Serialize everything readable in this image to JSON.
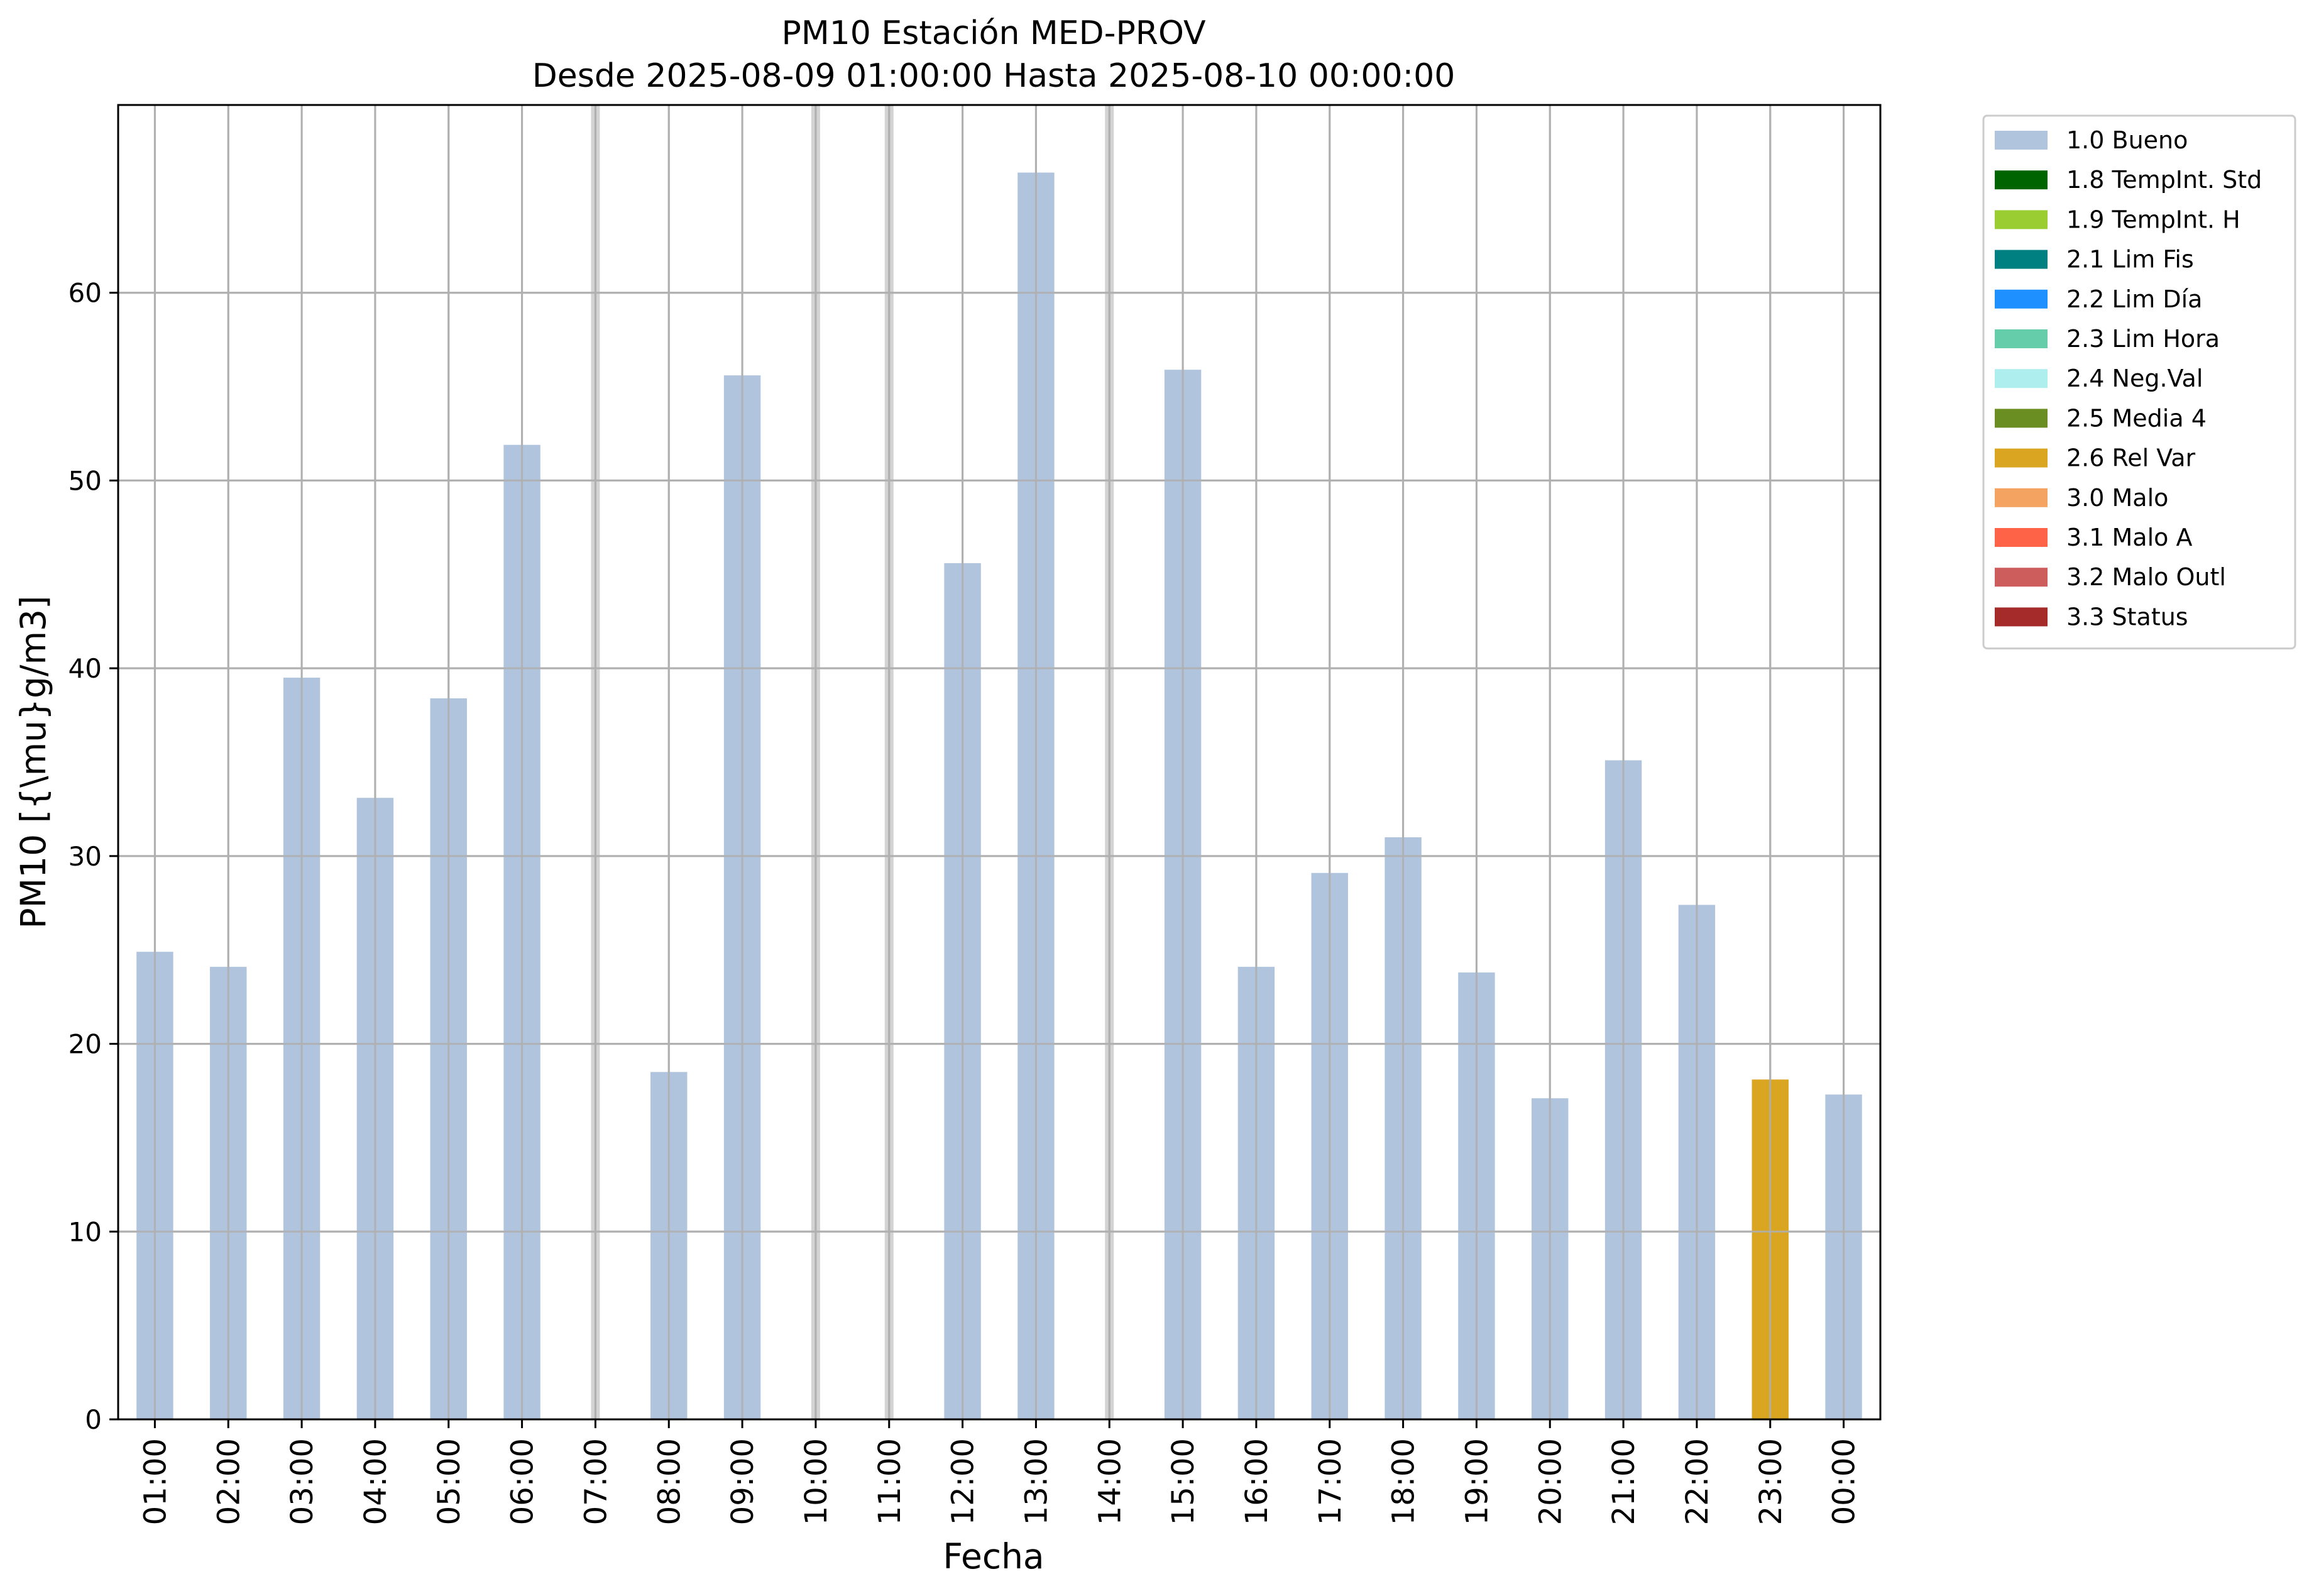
{
  "chart_data": {
    "type": "bar",
    "title": "PM10 Estación MED-PROV",
    "subtitle": "Desde 2025-08-09 01:00:00 Hasta 2025-08-10 00:00:00",
    "xlabel": "Fecha",
    "ylabel": "PM10 [{\\mu}g/m3]",
    "ylim": [
      0,
      70
    ],
    "yticks": [
      0,
      10,
      20,
      30,
      40,
      50,
      60
    ],
    "grid": true,
    "legend_position": "outside-top-right",
    "categories": [
      "01:00",
      "02:00",
      "03:00",
      "04:00",
      "05:00",
      "06:00",
      "07:00",
      "08:00",
      "09:00",
      "10:00",
      "11:00",
      "12:00",
      "13:00",
      "14:00",
      "15:00",
      "16:00",
      "17:00",
      "18:00",
      "19:00",
      "20:00",
      "21:00",
      "22:00",
      "23:00",
      "00:00"
    ],
    "values": [
      24.9,
      24.1,
      39.5,
      33.1,
      38.4,
      51.9,
      null,
      18.5,
      55.6,
      null,
      null,
      45.6,
      66.4,
      null,
      55.9,
      24.1,
      29.1,
      31.0,
      23.8,
      17.1,
      35.1,
      27.4,
      18.1,
      17.3
    ],
    "flags": [
      "1.0 Bueno",
      "1.0 Bueno",
      "1.0 Bueno",
      "1.0 Bueno",
      "1.0 Bueno",
      "1.0 Bueno",
      null,
      "1.0 Bueno",
      "1.0 Bueno",
      null,
      null,
      "1.0 Bueno",
      "1.0 Bueno",
      null,
      "1.0 Bueno",
      "1.0 Bueno",
      "1.0 Bueno",
      "1.0 Bueno",
      "1.0 Bueno",
      "1.0 Bueno",
      "1.0 Bueno",
      "1.0 Bueno",
      "2.6 Rel Var",
      "1.0 Bueno"
    ],
    "missing_markers": [
      "07:00",
      "10:00",
      "11:00",
      "14:00"
    ],
    "legend": [
      {
        "label": "1.0 Bueno",
        "color": "#b0c4de"
      },
      {
        "label": "1.8 TempInt. Std",
        "color": "#006400"
      },
      {
        "label": "1.9 TempInt. H",
        "color": "#9acd32"
      },
      {
        "label": "2.1 Lim Fis",
        "color": "#008080"
      },
      {
        "label": "2.2 Lim Día",
        "color": "#1e90ff"
      },
      {
        "label": "2.3 Lim Hora",
        "color": "#66cdaa"
      },
      {
        "label": "2.4 Neg.Val",
        "color": "#afeeee"
      },
      {
        "label": "2.5 Media 4",
        "color": "#6b8e23"
      },
      {
        "label": "2.6 Rel Var",
        "color": "#daa520"
      },
      {
        "label": "3.0 Malo",
        "color": "#f4a460"
      },
      {
        "label": "3.1 Malo A",
        "color": "#ff6347"
      },
      {
        "label": "3.2 Malo Outl",
        "color": "#cd5c5c"
      },
      {
        "label": "3.3 Status",
        "color": "#a52a2a"
      }
    ]
  }
}
